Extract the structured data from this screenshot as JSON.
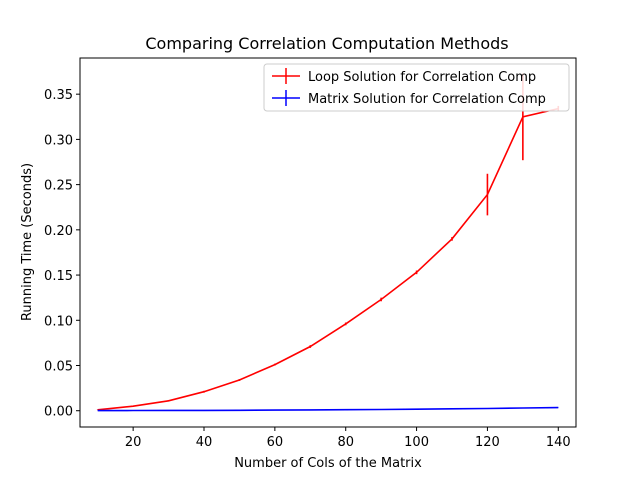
{
  "chart_data": {
    "type": "line",
    "title": "Comparing Correlation Computation Methods",
    "xlabel": "Number of Cols of the Matrix",
    "ylabel": "Running Time (Seconds)",
    "xlim": [
      5,
      145
    ],
    "ylim": [
      -0.018,
      0.39
    ],
    "x": [
      10,
      20,
      30,
      40,
      50,
      60,
      70,
      80,
      90,
      100,
      110,
      120,
      130,
      140
    ],
    "xticks": [
      20,
      40,
      60,
      80,
      100,
      120,
      140
    ],
    "yticks": [
      0.0,
      0.05,
      0.1,
      0.15,
      0.2,
      0.25,
      0.3,
      0.35
    ],
    "ytick_labels": [
      "0.00",
      "0.05",
      "0.10",
      "0.15",
      "0.20",
      "0.25",
      "0.30",
      "0.35"
    ],
    "grid": false,
    "legend_position": "top-right",
    "series": [
      {
        "name": "Loop Solution for Correlation Comp",
        "color": "#ff0000",
        "values": [
          0.001,
          0.005,
          0.011,
          0.021,
          0.034,
          0.051,
          0.071,
          0.096,
          0.123,
          0.153,
          0.19,
          0.239,
          0.325,
          0.334
        ],
        "errors": [
          0.0003,
          0.0005,
          0.0008,
          0.001,
          0.001,
          0.001,
          0.0015,
          0.0015,
          0.002,
          0.002,
          0.002,
          0.023,
          0.048,
          0.003
        ]
      },
      {
        "name": "Matrix Solution for Correlation Comp",
        "color": "#0000ff",
        "values": [
          0.0001,
          0.0002,
          0.0003,
          0.0004,
          0.0005,
          0.0007,
          0.0009,
          0.0011,
          0.0014,
          0.0017,
          0.0021,
          0.0025,
          0.003,
          0.0035
        ],
        "errors": [
          5e-05,
          5e-05,
          5e-05,
          5e-05,
          5e-05,
          5e-05,
          5e-05,
          5e-05,
          5e-05,
          5e-05,
          5e-05,
          5e-05,
          0.0001,
          0.0001
        ]
      }
    ]
  }
}
